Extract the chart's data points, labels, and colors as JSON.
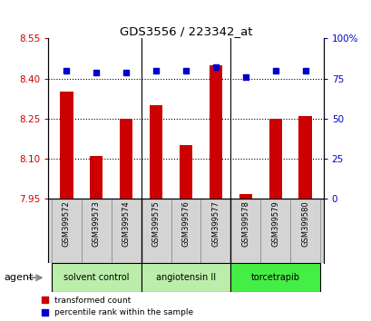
{
  "title": "GDS3556 / 223342_at",
  "samples": [
    "GSM399572",
    "GSM399573",
    "GSM399574",
    "GSM399575",
    "GSM399576",
    "GSM399577",
    "GSM399578",
    "GSM399579",
    "GSM399580"
  ],
  "bar_values": [
    8.35,
    8.11,
    8.25,
    8.3,
    8.15,
    8.45,
    7.97,
    8.25,
    8.26
  ],
  "dot_values": [
    80,
    79,
    79,
    80,
    80,
    82,
    76,
    80,
    80
  ],
  "ylim_left": [
    7.95,
    8.55
  ],
  "ylim_right": [
    0,
    100
  ],
  "yticks_left": [
    7.95,
    8.1,
    8.25,
    8.4,
    8.55
  ],
  "yticks_right": [
    0,
    25,
    50,
    75,
    100
  ],
  "ytick_labels_right": [
    "0",
    "25",
    "50",
    "75",
    "100%"
  ],
  "bar_color": "#cc0000",
  "dot_color": "#0000cc",
  "grid_color": "#000000",
  "groups": [
    {
      "label": "solvent control",
      "start": 0,
      "end": 3,
      "color": "#bbeeaa"
    },
    {
      "label": "angiotensin II",
      "start": 3,
      "end": 6,
      "color": "#bbeeaa"
    },
    {
      "label": "torcetrapib",
      "start": 6,
      "end": 9,
      "color": "#44ee44"
    }
  ],
  "sample_box_color": "#d4d4d4",
  "agent_label": "agent",
  "legend_bar_label": "transformed count",
  "legend_dot_label": "percentile rank within the sample",
  "background_color": "#ffffff",
  "plot_bg_color": "#ffffff",
  "tick_label_color_left": "#cc0000",
  "tick_label_color_right": "#0000cc",
  "grid_lines_at": [
    8.1,
    8.25,
    8.4
  ]
}
